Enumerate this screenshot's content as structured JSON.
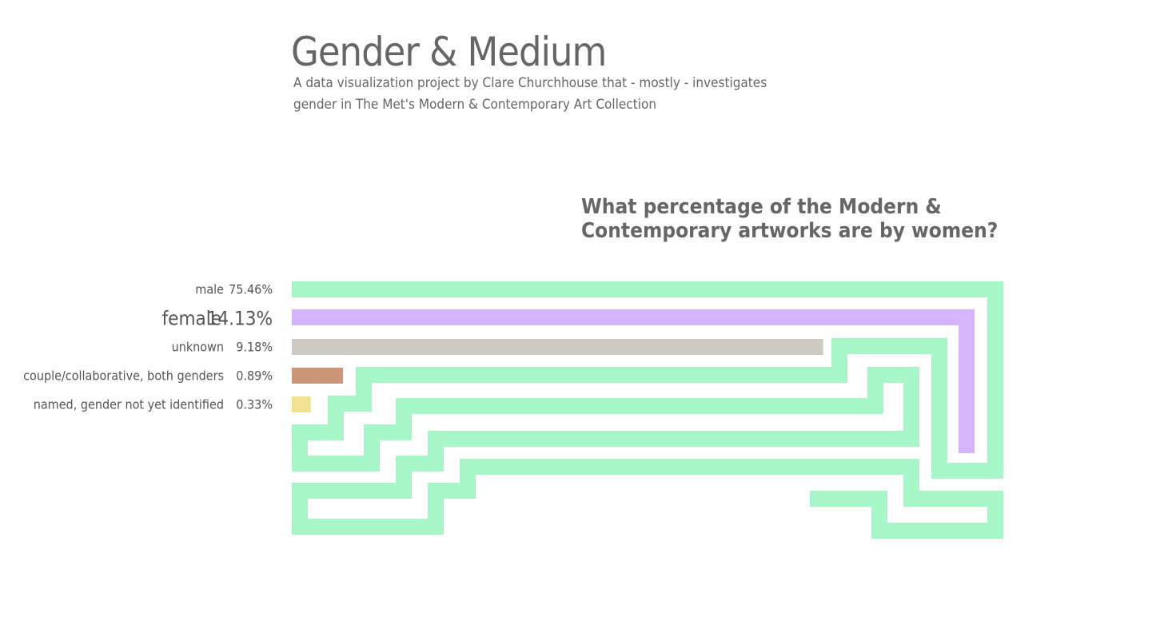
{
  "header": {
    "title": "Gender & Medium",
    "subtitle": "A data visualization project by Clare Churchhouse that - mostly - investigates gender in The Met's Modern & Contemporary Art Collection"
  },
  "chart_data": {
    "type": "bar",
    "orientation": "horizontal",
    "title": "What percentage of the Modern & Contemporary artworks are by women?",
    "xlabel": "",
    "ylabel": "",
    "unit": "%",
    "grid": false,
    "legend": "none",
    "highlight": "female",
    "categories": [
      "male",
      "female",
      "unknown",
      "couple/collaborative, both genders",
      "named, gender not yet identified"
    ],
    "values": [
      75.46,
      14.13,
      9.18,
      0.89,
      0.33
    ],
    "value_labels": [
      "75.46%",
      "14.13%",
      "9.18%",
      "0.89%",
      "0.33%"
    ],
    "colors": [
      "#a8f7c8",
      "#d6b4fb",
      "#cdc9c4",
      "#cd9678",
      "#f0e290"
    ]
  }
}
